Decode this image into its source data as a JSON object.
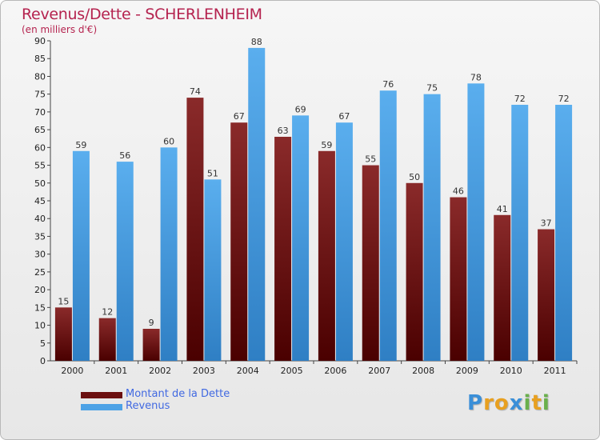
{
  "chart_data": {
    "type": "bar",
    "title": "Revenus/Dette - SCHERLENHEIM",
    "subtitle": "(en milliers d'€)",
    "categories": [
      "2000",
      "2001",
      "2002",
      "2003",
      "2004",
      "2005",
      "2006",
      "2007",
      "2008",
      "2009",
      "2010",
      "2011"
    ],
    "series": [
      {
        "name": "Montant de la Dette",
        "color": "#6b0f0f",
        "values": [
          15,
          12,
          9,
          74,
          67,
          63,
          59,
          55,
          50,
          46,
          41,
          37
        ]
      },
      {
        "name": "Revenus",
        "color": "#4da2e6",
        "values": [
          59,
          56,
          60,
          51,
          88,
          69,
          67,
          76,
          75,
          78,
          72,
          72
        ]
      }
    ],
    "ylim": [
      0,
      90
    ],
    "yticks": [
      0,
      5,
      10,
      15,
      20,
      25,
      30,
      35,
      40,
      45,
      50,
      55,
      60,
      65,
      70,
      75,
      80,
      85,
      90
    ],
    "grid": false,
    "legend_position": "bottom-left",
    "xlabel": "",
    "ylabel": ""
  },
  "logo": {
    "letters": [
      "P",
      "r",
      "o",
      "x",
      "i",
      "t",
      "i"
    ],
    "colors": [
      "#3a8fd8",
      "#e8a020",
      "#e8a020",
      "#3a8fd8",
      "#6ab04c",
      "#e8a020",
      "#6ab04c"
    ]
  }
}
